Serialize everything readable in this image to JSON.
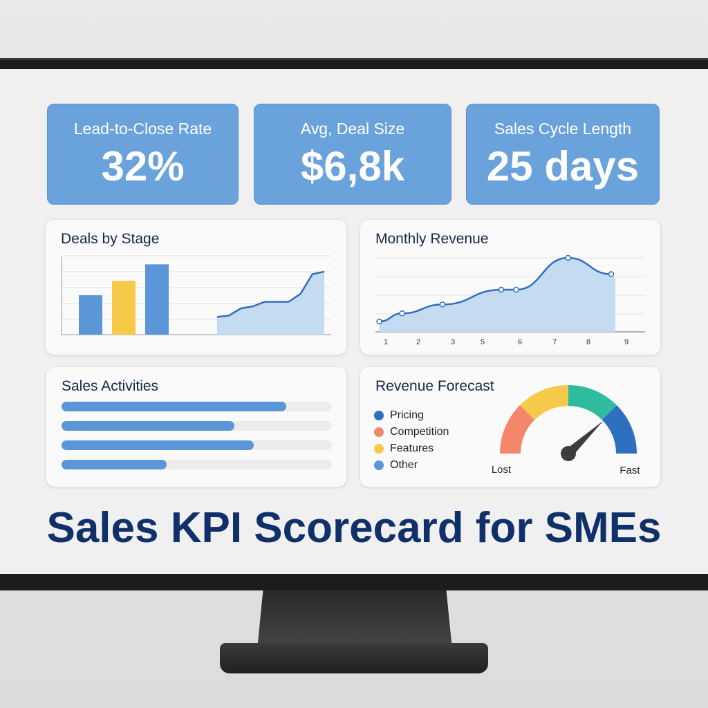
{
  "kpis": [
    {
      "label": "Lead-to-Close Rate",
      "value": "32%"
    },
    {
      "label": "Avg, Deal Size",
      "value": "$6,8k"
    },
    {
      "label": "Sales Cycle Length",
      "value": "25 days"
    }
  ],
  "deals_by_stage": {
    "title": "Deals by Stage"
  },
  "monthly_revenue": {
    "title": "Monthly Revenue"
  },
  "sales_activities": {
    "title": "Sales Activities"
  },
  "revenue_forecast": {
    "title": "Revenue Forecast",
    "legend": [
      {
        "label": "Pricing",
        "color": "#2f6fbf"
      },
      {
        "label": "Competition",
        "color": "#f4876a"
      },
      {
        "label": "Features",
        "color": "#f7c948"
      },
      {
        "label": "Other",
        "color": "#5b97d8"
      }
    ],
    "min_label": "Lost",
    "max_label": "Fast"
  },
  "headline": "Sales KPI Scorecard for SMEs",
  "chart_data": [
    {
      "type": "bar",
      "title": "Deals by Stage",
      "values": [
        60,
        82,
        107
      ],
      "colors": [
        "#5b97d8",
        "#f7c948",
        "#5b97d8"
      ],
      "ylim": [
        0,
        120
      ],
      "grid": true,
      "area": {
        "type": "area",
        "values": [
          27,
          29,
          40,
          43,
          50,
          50,
          50,
          62,
          92,
          96
        ]
      }
    },
    {
      "type": "area",
      "title": "Monthly Revenue",
      "x_ticks": [
        "1",
        "2",
        "3",
        "5",
        "6",
        "7",
        "8",
        "9"
      ],
      "points": [
        [
          0.8,
          14
        ],
        [
          1.5,
          25
        ],
        [
          2.7,
          37
        ],
        [
          5.5,
          57
        ],
        [
          5.9,
          57
        ],
        [
          7.4,
          100
        ],
        [
          8.6,
          78
        ]
      ],
      "ylim": [
        0,
        100
      ],
      "grid": true
    },
    {
      "type": "progress",
      "title": "Sales Activities",
      "values": [
        0.83,
        0.64,
        0.71,
        0.39
      ]
    },
    {
      "type": "gauge",
      "title": "Revenue Forecast",
      "segments": [
        "#f4876a",
        "#f7c948",
        "#2fbc9e",
        "#2f6fbf"
      ],
      "value": 0.76
    }
  ]
}
